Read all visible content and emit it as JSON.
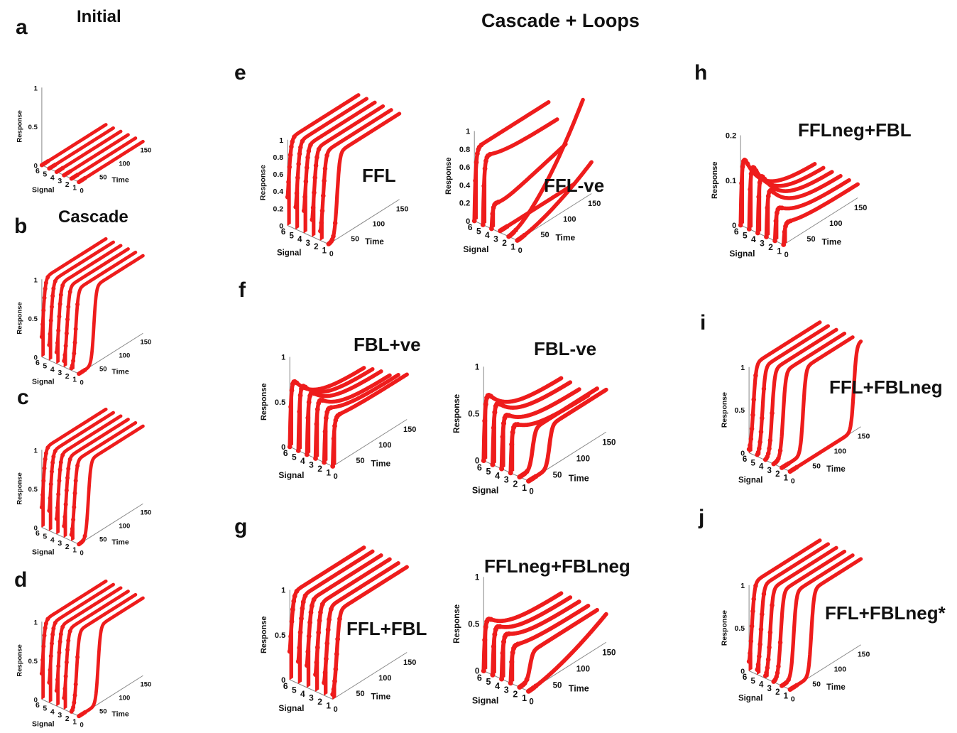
{
  "headers": {
    "initial": "Initial",
    "cascade": "Cascade",
    "loops": "Cascade + Loops"
  },
  "chart_data": [
    {
      "id": "a",
      "type": "line",
      "panel_label": "a",
      "title": "",
      "xlabel": "Time",
      "ylabel": "Response",
      "signal_label": "Signal",
      "signals": [
        1,
        2,
        3,
        4,
        5,
        6
      ],
      "x_ticks": [
        0,
        50,
        100,
        150
      ],
      "y_ticks": [
        0,
        0.5,
        1
      ],
      "ylim": [
        0,
        1
      ],
      "xlim": [
        0,
        150
      ],
      "series": [
        {
          "signal": 1,
          "shape": "flat",
          "level": 0
        },
        {
          "signal": 2,
          "shape": "flat",
          "level": 0
        },
        {
          "signal": 3,
          "shape": "flat",
          "level": 0
        },
        {
          "signal": 4,
          "shape": "flat",
          "level": 0
        },
        {
          "signal": 5,
          "shape": "flat",
          "level": 0
        },
        {
          "signal": 6,
          "shape": "flat",
          "level": 0
        }
      ]
    },
    {
      "id": "b",
      "type": "line",
      "panel_label": "b",
      "title": "",
      "xlabel": "Time",
      "ylabel": "Response",
      "signal_label": "Signal",
      "signals": [
        1,
        2,
        3,
        4,
        5,
        6
      ],
      "x_ticks": [
        0,
        50,
        100,
        150
      ],
      "y_ticks": [
        0,
        0.5,
        1
      ],
      "ylim": [
        0,
        1
      ],
      "xlim": [
        0,
        150
      ],
      "series": [
        {
          "signal": 1,
          "shape": "rise",
          "level": 1,
          "t50": 35
        },
        {
          "signal": 2,
          "shape": "rise",
          "level": 1,
          "t50": 10
        },
        {
          "signal": 3,
          "shape": "rise",
          "level": 1,
          "t50": 7
        },
        {
          "signal": 4,
          "shape": "rise",
          "level": 1,
          "t50": 5
        },
        {
          "signal": 5,
          "shape": "rise",
          "level": 1,
          "t50": 4
        },
        {
          "signal": 6,
          "shape": "rise",
          "level": 1,
          "t50": 3
        }
      ]
    },
    {
      "id": "c",
      "type": "line",
      "panel_label": "c",
      "title": "",
      "xlabel": "Time",
      "ylabel": "Response",
      "signal_label": "Signal",
      "signals": [
        1,
        2,
        3,
        4,
        5,
        6
      ],
      "x_ticks": [
        0,
        50,
        100,
        150
      ],
      "y_ticks": [
        0,
        0.5,
        1
      ],
      "ylim": [
        0,
        1
      ],
      "xlim": [
        0,
        150
      ],
      "series": [
        {
          "signal": 1,
          "shape": "rise",
          "level": 1,
          "t50": 22
        },
        {
          "signal": 2,
          "shape": "rise",
          "level": 1,
          "t50": 7
        },
        {
          "signal": 3,
          "shape": "rise",
          "level": 1,
          "t50": 5
        },
        {
          "signal": 4,
          "shape": "rise",
          "level": 1,
          "t50": 4
        },
        {
          "signal": 5,
          "shape": "rise",
          "level": 1,
          "t50": 3
        },
        {
          "signal": 6,
          "shape": "rise",
          "level": 1,
          "t50": 3
        }
      ]
    },
    {
      "id": "d",
      "type": "line",
      "panel_label": "d",
      "title": "",
      "xlabel": "Time",
      "ylabel": "Response",
      "signal_label": "Signal",
      "signals": [
        1,
        2,
        3,
        4,
        5,
        6
      ],
      "x_ticks": [
        0,
        50,
        100,
        150
      ],
      "y_ticks": [
        0,
        0.5,
        1
      ],
      "ylim": [
        0,
        1
      ],
      "xlim": [
        0,
        150
      ],
      "series": [
        {
          "signal": 1,
          "shape": "rise",
          "level": 1,
          "t50": 45
        },
        {
          "signal": 2,
          "shape": "rise",
          "level": 1,
          "t50": 12
        },
        {
          "signal": 3,
          "shape": "rise",
          "level": 1,
          "t50": 5
        },
        {
          "signal": 4,
          "shape": "rise",
          "level": 1,
          "t50": 4
        },
        {
          "signal": 5,
          "shape": "rise",
          "level": 1,
          "t50": 3
        },
        {
          "signal": 6,
          "shape": "rise",
          "level": 1,
          "t50": 2
        }
      ]
    },
    {
      "id": "e1",
      "type": "line",
      "panel_label": "e",
      "title": "FFL",
      "xlabel": "Time",
      "ylabel": "Response",
      "signal_label": "Signal",
      "signals": [
        1,
        2,
        3,
        4,
        5,
        6
      ],
      "x_ticks": [
        0,
        50,
        100,
        150
      ],
      "y_ticks": [
        0,
        0.2,
        0.4,
        0.6,
        0.8,
        1
      ],
      "ylim": [
        0,
        1
      ],
      "xlim": [
        0,
        150
      ],
      "series": [
        {
          "signal": 1,
          "shape": "rise",
          "level": 1,
          "t50": 18
        },
        {
          "signal": 2,
          "shape": "rise",
          "level": 1,
          "t50": 6
        },
        {
          "signal": 3,
          "shape": "rise",
          "level": 1,
          "t50": 4
        },
        {
          "signal": 4,
          "shape": "rise",
          "level": 1,
          "t50": 3
        },
        {
          "signal": 5,
          "shape": "rise",
          "level": 1,
          "t50": 3
        },
        {
          "signal": 6,
          "shape": "rise",
          "level": 1,
          "t50": 2
        }
      ]
    },
    {
      "id": "e2",
      "type": "line",
      "panel_label": "",
      "title": "FFL-ve",
      "xlabel": "Time",
      "ylabel": "Response",
      "signal_label": "Signal",
      "signals": [
        1,
        2,
        3,
        4,
        5,
        6
      ],
      "x_ticks": [
        0,
        50,
        100,
        150
      ],
      "y_ticks": [
        0,
        0.2,
        0.4,
        0.6,
        0.8,
        1
      ],
      "ylim": [
        0,
        1
      ],
      "xlim": [
        0,
        150
      ],
      "series": [
        {
          "signal": 1,
          "shape": "slowrise",
          "level": 0.35
        },
        {
          "signal": 2,
          "shape": "slowrise",
          "level": 1.0
        },
        {
          "signal": 3,
          "shape": "flat",
          "level": 0.02
        },
        {
          "signal": 4,
          "shape": "dip",
          "peak": 0.3,
          "trough": 0.18,
          "end": 0.42
        },
        {
          "signal": 5,
          "shape": "peakdecay",
          "peak": 0.78,
          "end": 0.65
        },
        {
          "signal": 6,
          "shape": "peakdecay",
          "peak": 0.8,
          "end": 0.8
        }
      ]
    },
    {
      "id": "f1",
      "type": "line",
      "panel_label": "f",
      "title": "FBL+ve",
      "xlabel": "Time",
      "ylabel": "Response",
      "signal_label": "Signal",
      "signals": [
        1,
        2,
        3,
        4,
        5,
        6
      ],
      "x_ticks": [
        0,
        50,
        100,
        150
      ],
      "y_ticks": [
        0,
        0.5,
        1
      ],
      "ylim": [
        0,
        1
      ],
      "xlim": [
        0,
        150
      ],
      "series": [
        {
          "signal": 1,
          "shape": "peakdecay",
          "peak": 0.55,
          "end": 0.5
        },
        {
          "signal": 2,
          "shape": "peakdecay",
          "peak": 0.62,
          "end": 0.45
        },
        {
          "signal": 3,
          "shape": "peakdecay",
          "peak": 0.7,
          "end": 0.4
        },
        {
          "signal": 4,
          "shape": "peakdecay",
          "peak": 0.75,
          "end": 0.4
        },
        {
          "signal": 5,
          "shape": "peakdecay",
          "peak": 0.8,
          "end": 0.38
        },
        {
          "signal": 6,
          "shape": "peakdecay",
          "peak": 0.82,
          "end": 0.35
        }
      ]
    },
    {
      "id": "f2",
      "type": "line",
      "panel_label": "",
      "title": "FBL-ve",
      "xlabel": "Time",
      "ylabel": "Response",
      "signal_label": "Signal",
      "signals": [
        1,
        2,
        3,
        4,
        5,
        6
      ],
      "x_ticks": [
        0,
        50,
        100,
        150
      ],
      "y_ticks": [
        0,
        0.5,
        1
      ],
      "ylim": [
        0,
        1
      ],
      "xlim": [
        0,
        150
      ],
      "series": [
        {
          "signal": 1,
          "shape": "rise",
          "level": 0.45,
          "t50": 40
        },
        {
          "signal": 2,
          "shape": "rise",
          "level": 0.42,
          "t50": 25
        },
        {
          "signal": 3,
          "shape": "peakdecay",
          "peak": 0.55,
          "end": 0.3
        },
        {
          "signal": 4,
          "shape": "peakdecay",
          "peak": 0.62,
          "end": 0.32
        },
        {
          "signal": 5,
          "shape": "peakdecay",
          "peak": 0.72,
          "end": 0.35
        },
        {
          "signal": 6,
          "shape": "peakdecay",
          "peak": 0.78,
          "end": 0.35
        }
      ]
    },
    {
      "id": "g1",
      "type": "line",
      "panel_label": "g",
      "title": "FFL+FBL",
      "xlabel": "Time",
      "ylabel": "Response",
      "signal_label": "Signal",
      "signals": [
        1,
        2,
        3,
        4,
        5,
        6
      ],
      "x_ticks": [
        0,
        50,
        100,
        150
      ],
      "y_ticks": [
        0,
        0.5,
        1
      ],
      "ylim": [
        0,
        1
      ],
      "xlim": [
        0,
        150
      ],
      "series": [
        {
          "signal": 1,
          "shape": "rise",
          "level": 0.95,
          "t50": 8
        },
        {
          "signal": 2,
          "shape": "rise",
          "level": 0.95,
          "t50": 5
        },
        {
          "signal": 3,
          "shape": "rise",
          "level": 0.95,
          "t50": 4
        },
        {
          "signal": 4,
          "shape": "rise",
          "level": 0.95,
          "t50": 3
        },
        {
          "signal": 5,
          "shape": "rise",
          "level": 0.95,
          "t50": 3
        },
        {
          "signal": 6,
          "shape": "rise",
          "level": 0.95,
          "t50": 2
        }
      ]
    },
    {
      "id": "g2",
      "type": "line",
      "panel_label": "",
      "title": "FFLneg+FBLneg",
      "xlabel": "Time",
      "ylabel": "Response",
      "signal_label": "Signal",
      "signals": [
        1,
        2,
        3,
        4,
        5,
        6
      ],
      "x_ticks": [
        0,
        50,
        100,
        150
      ],
      "y_ticks": [
        0,
        0.5,
        1
      ],
      "ylim": [
        0,
        1
      ],
      "xlim": [
        0,
        150
      ],
      "series": [
        {
          "signal": 1,
          "shape": "slowrise",
          "level": 0.3
        },
        {
          "signal": 2,
          "shape": "rise",
          "level": 0.3,
          "t50": 20
        },
        {
          "signal": 3,
          "shape": "peakdecay",
          "peak": 0.4,
          "end": 0.3
        },
        {
          "signal": 4,
          "shape": "peakdecay",
          "peak": 0.5,
          "end": 0.3
        },
        {
          "signal": 5,
          "shape": "peakdecay",
          "peak": 0.55,
          "end": 0.3
        },
        {
          "signal": 6,
          "shape": "peakdecay",
          "peak": 0.6,
          "end": 0.3
        }
      ]
    },
    {
      "id": "h",
      "type": "line",
      "panel_label": "h",
      "title": "FFLneg+FBL",
      "xlabel": "Time",
      "ylabel": "Response",
      "signal_label": "Signal",
      "signals": [
        1,
        2,
        3,
        4,
        5,
        6
      ],
      "x_ticks": [
        0,
        50,
        100,
        150
      ],
      "y_ticks": [
        0,
        0.1,
        0.2
      ],
      "ylim": [
        0,
        0.2
      ],
      "xlim": [
        0,
        150
      ],
      "series": [
        {
          "signal": 1,
          "shape": "peakdecay",
          "peak": 0.05,
          "end": 0.03
        },
        {
          "signal": 2,
          "shape": "peakdecay",
          "peak": 0.08,
          "end": 0.03
        },
        {
          "signal": 3,
          "shape": "peakdecay",
          "peak": 0.12,
          "end": 0.03
        },
        {
          "signal": 4,
          "shape": "peakdecay",
          "peak": 0.15,
          "end": 0.03
        },
        {
          "signal": 5,
          "shape": "peakdecay",
          "peak": 0.165,
          "end": 0.03
        },
        {
          "signal": 6,
          "shape": "peakdecay",
          "peak": 0.175,
          "end": 0.03
        }
      ]
    },
    {
      "id": "i",
      "type": "line",
      "panel_label": "i",
      "title": "FFL+FBLneg",
      "xlabel": "Time",
      "ylabel": "Response",
      "signal_label": "Signal",
      "signals": [
        1,
        2,
        3,
        4,
        5,
        6
      ],
      "x_ticks": [
        0,
        50,
        100,
        150
      ],
      "y_ticks": [
        0,
        0.5,
        1
      ],
      "ylim": [
        0,
        1
      ],
      "xlim": [
        0,
        150
      ],
      "series": [
        {
          "signal": 1,
          "shape": "rise",
          "level": 1,
          "t50": 135
        },
        {
          "signal": 2,
          "shape": "rise",
          "level": 1,
          "t50": 45
        },
        {
          "signal": 3,
          "shape": "rise",
          "level": 1,
          "t50": 20
        },
        {
          "signal": 4,
          "shape": "rise",
          "level": 1,
          "t50": 14
        },
        {
          "signal": 5,
          "shape": "rise",
          "level": 1,
          "t50": 11
        },
        {
          "signal": 6,
          "shape": "rise",
          "level": 1,
          "t50": 9
        }
      ]
    },
    {
      "id": "j",
      "type": "line",
      "panel_label": "j",
      "title": "FFL+FBLneg*",
      "xlabel": "Time",
      "ylabel": "Response",
      "signal_label": "Signal",
      "signals": [
        1,
        2,
        3,
        4,
        5,
        6
      ],
      "x_ticks": [
        0,
        50,
        100,
        150
      ],
      "y_ticks": [
        0,
        0.5,
        1
      ],
      "ylim": [
        0,
        1
      ],
      "xlim": [
        0,
        150
      ],
      "series": [
        {
          "signal": 1,
          "shape": "rise",
          "level": 1,
          "t50": 45
        },
        {
          "signal": 2,
          "shape": "rise",
          "level": 1,
          "t50": 25
        },
        {
          "signal": 3,
          "shape": "rise",
          "level": 1,
          "t50": 15
        },
        {
          "signal": 4,
          "shape": "rise",
          "level": 1,
          "t50": 10
        },
        {
          "signal": 5,
          "shape": "rise",
          "level": 1,
          "t50": 8
        },
        {
          "signal": 6,
          "shape": "rise",
          "level": 1,
          "t50": 6
        }
      ]
    }
  ]
}
